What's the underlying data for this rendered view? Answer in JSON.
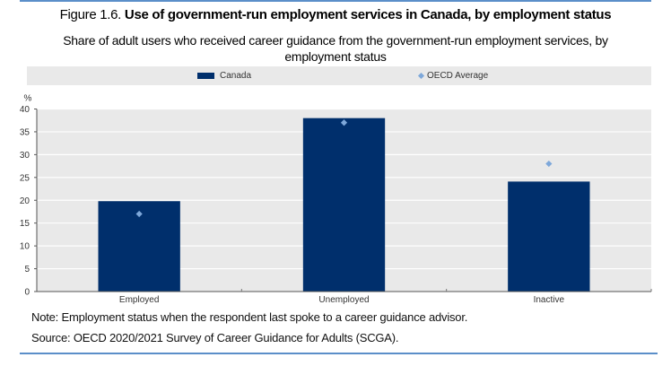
{
  "figure": {
    "prefix": "Figure 1.6.",
    "title": "Use of government-run employment services in Canada, by employment status",
    "subtitle": "Share of adult users who received career guidance from the government-run employment services, by employment status"
  },
  "chart_data": {
    "type": "bar",
    "title": "Use of government-run employment services in Canada, by employment status",
    "subtitle": "Share of adult users who received career guidance from the government-run employment services, by employment status",
    "xlabel": "",
    "ylabel": "%",
    "ylim": [
      0,
      40
    ],
    "yticks": [
      0,
      5,
      10,
      15,
      20,
      25,
      30,
      35,
      40
    ],
    "grid": true,
    "legend_position": "top",
    "categories": [
      "Employed",
      "Unemployed",
      "Inactive"
    ],
    "series": [
      {
        "name": "Canada",
        "type": "bar",
        "color": "#002f6c",
        "values": [
          19.8,
          38.0,
          24.1
        ]
      },
      {
        "name": "OECD Average",
        "type": "marker-diamond",
        "color": "#7ea8da",
        "values": [
          17.0,
          37.0,
          28.0
        ]
      }
    ]
  },
  "legend": {
    "items": [
      {
        "label": "Canada",
        "icon": "bar-swatch",
        "color": "#002f6c"
      },
      {
        "label": "OECD Average",
        "icon": "diamond-marker",
        "color": "#7ea8da"
      }
    ]
  },
  "notes": {
    "note": "Note: Employment status when the respondent last spoke to a career guidance advisor.",
    "source": "Source: OECD 2020/2021 Survey of Career Guidance for Adults (SCGA)."
  }
}
